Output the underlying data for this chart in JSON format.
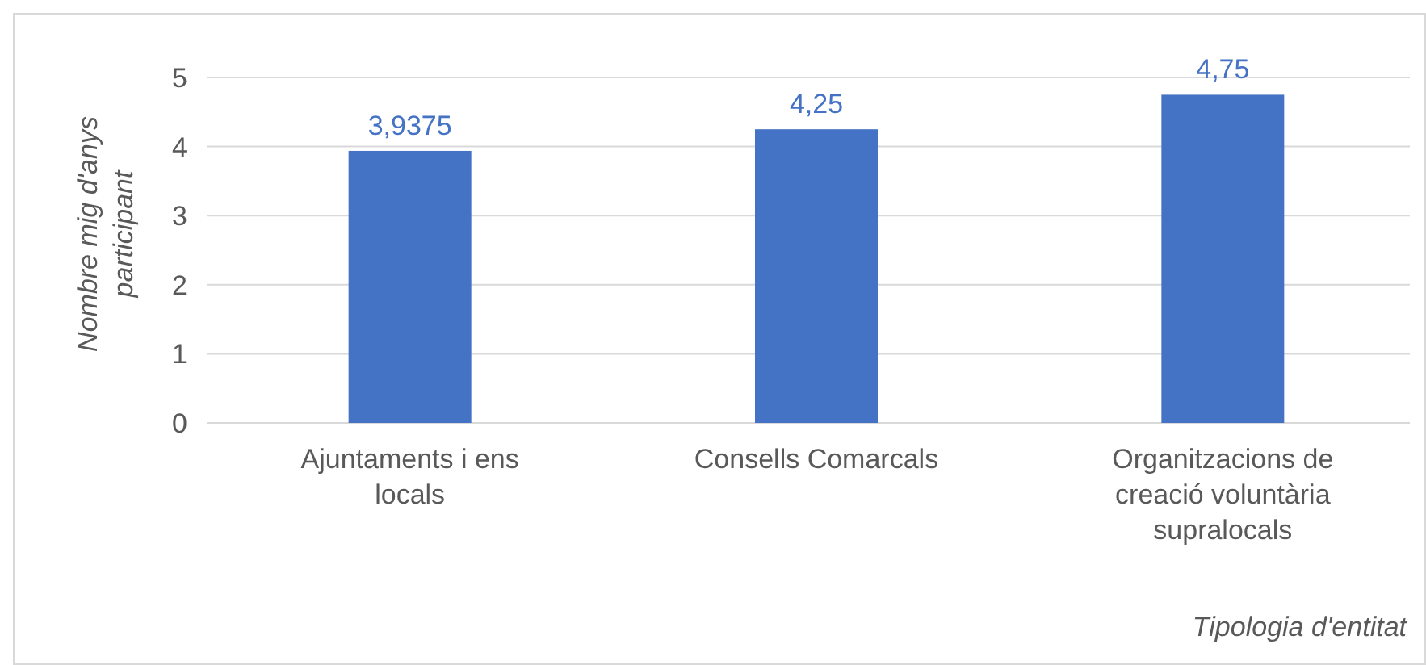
{
  "chart_data": {
    "type": "bar",
    "xlabel": "Tipologia d'entitat",
    "ylabel": "Nombre mig d'anys participant",
    "categories": [
      "Ajuntaments i ens locals",
      "Consells Comarcals",
      "Organitzacions de creació voluntària supralocals"
    ],
    "values": [
      3.9375,
      4.25,
      4.75
    ],
    "color": "#4472c4",
    "value_labels": [
      "3,9375",
      "4,25",
      "4,75"
    ],
    "ylim": [
      0,
      5
    ],
    "yticks": [
      0,
      1,
      2,
      3,
      4,
      5
    ],
    "grid": "y"
  }
}
